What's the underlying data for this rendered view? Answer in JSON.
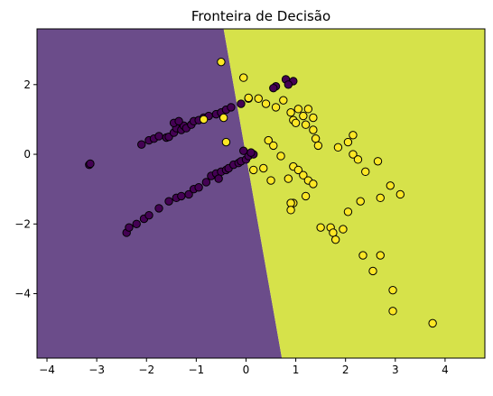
{
  "chart_data": {
    "type": "scatter",
    "title": "Fronteira de Decisão",
    "xlabel": "",
    "ylabel": "",
    "xlim": [
      -4.2,
      4.8
    ],
    "ylim": [
      -5.85,
      3.6
    ],
    "x_ticks": [
      -4,
      -3,
      -2,
      -1,
      0,
      1,
      2,
      3,
      4
    ],
    "y_ticks": [
      2,
      0,
      -2,
      -4
    ],
    "x_tick_labels": [
      "−4",
      "−3",
      "−2",
      "−1",
      "0",
      "1",
      "2",
      "3",
      "4"
    ],
    "y_tick_labels": [
      "2",
      "0",
      "−2",
      "−4"
    ],
    "grid": false,
    "colors": {
      "class0_region": "#6b4c8a",
      "class1_region": "#d6e24a",
      "class0_point": "#440154",
      "class1_point": "#fde725",
      "point_edge": "#000000"
    },
    "decision_boundary": [
      [
        -0.45,
        3.6
      ],
      [
        0.72,
        -5.85
      ]
    ],
    "series": [
      {
        "class": 0,
        "points": [
          [
            -3.15,
            -0.3
          ],
          [
            -3.13,
            -0.27
          ],
          [
            -2.1,
            0.28
          ],
          [
            -1.95,
            0.4
          ],
          [
            -1.85,
            0.45
          ],
          [
            -1.75,
            0.52
          ],
          [
            -1.6,
            0.48
          ],
          [
            -1.55,
            0.5
          ],
          [
            -1.45,
            0.62
          ],
          [
            -1.4,
            0.75
          ],
          [
            -1.3,
            0.7
          ],
          [
            -1.25,
            0.82
          ],
          [
            -1.2,
            0.75
          ],
          [
            -1.1,
            0.85
          ],
          [
            -1.05,
            0.95
          ],
          [
            -0.95,
            0.98
          ],
          [
            -0.85,
            1.05
          ],
          [
            -0.75,
            1.1
          ],
          [
            -0.6,
            1.15
          ],
          [
            -0.5,
            1.2
          ],
          [
            -0.4,
            1.28
          ],
          [
            -0.3,
            1.35
          ],
          [
            -0.1,
            1.45
          ],
          [
            0.05,
            1.6
          ],
          [
            -1.45,
            0.9
          ],
          [
            -1.35,
            0.95
          ],
          [
            -2.4,
            -2.25
          ],
          [
            -2.35,
            -2.1
          ],
          [
            -2.2,
            -2.0
          ],
          [
            -2.05,
            -1.85
          ],
          [
            -1.95,
            -1.75
          ],
          [
            -1.75,
            -1.55
          ],
          [
            -1.55,
            -1.35
          ],
          [
            -1.4,
            -1.25
          ],
          [
            -1.3,
            -1.2
          ],
          [
            -1.15,
            -1.15
          ],
          [
            -1.05,
            -1.0
          ],
          [
            -0.95,
            -0.95
          ],
          [
            -0.8,
            -0.8
          ],
          [
            -0.7,
            -0.62
          ],
          [
            -0.6,
            -0.55
          ],
          [
            -0.5,
            -0.5
          ],
          [
            -0.4,
            -0.45
          ],
          [
            -0.35,
            -0.4
          ],
          [
            -0.25,
            -0.3
          ],
          [
            -0.15,
            -0.25
          ],
          [
            -0.1,
            -0.2
          ],
          [
            0.0,
            -0.15
          ],
          [
            0.05,
            -0.05
          ],
          [
            0.15,
            0.0
          ],
          [
            -0.05,
            0.1
          ],
          [
            0.1,
            0.05
          ],
          [
            -0.55,
            -0.7
          ],
          [
            0.8,
            2.15
          ],
          [
            0.95,
            2.1
          ],
          [
            0.6,
            1.95
          ],
          [
            0.55,
            1.9
          ],
          [
            0.85,
            2.0
          ]
        ]
      },
      {
        "class": 1,
        "points": [
          [
            -0.5,
            2.65
          ],
          [
            -0.05,
            2.2
          ],
          [
            0.25,
            1.6
          ],
          [
            0.05,
            1.62
          ],
          [
            0.4,
            1.45
          ],
          [
            0.75,
            1.55
          ],
          [
            0.6,
            1.35
          ],
          [
            0.9,
            1.2
          ],
          [
            1.05,
            1.3
          ],
          [
            1.25,
            1.3
          ],
          [
            1.15,
            1.1
          ],
          [
            1.35,
            1.05
          ],
          [
            0.95,
            0.98
          ],
          [
            1.0,
            0.9
          ],
          [
            1.2,
            0.85
          ],
          [
            1.35,
            0.7
          ],
          [
            1.4,
            0.45
          ],
          [
            1.45,
            0.25
          ],
          [
            1.85,
            0.2
          ],
          [
            2.05,
            0.35
          ],
          [
            2.15,
            0.55
          ],
          [
            2.15,
            0.0
          ],
          [
            2.25,
            -0.15
          ],
          [
            2.4,
            -0.5
          ],
          [
            2.65,
            -0.2
          ],
          [
            2.9,
            -0.9
          ],
          [
            3.1,
            -1.15
          ],
          [
            2.7,
            -1.25
          ],
          [
            0.45,
            0.4
          ],
          [
            0.55,
            0.25
          ],
          [
            0.7,
            -0.05
          ],
          [
            0.95,
            -0.35
          ],
          [
            1.05,
            -0.45
          ],
          [
            1.15,
            -0.6
          ],
          [
            1.25,
            -0.75
          ],
          [
            1.35,
            -0.85
          ],
          [
            0.85,
            -0.7
          ],
          [
            0.5,
            -0.75
          ],
          [
            1.2,
            -1.2
          ],
          [
            0.95,
            -1.4
          ],
          [
            0.9,
            -1.4
          ],
          [
            0.9,
            -1.6
          ],
          [
            1.5,
            -2.1
          ],
          [
            1.7,
            -2.1
          ],
          [
            1.75,
            -2.25
          ],
          [
            1.8,
            -2.45
          ],
          [
            1.95,
            -2.15
          ],
          [
            2.3,
            -1.35
          ],
          [
            2.05,
            -1.65
          ],
          [
            2.35,
            -2.9
          ],
          [
            2.55,
            -3.35
          ],
          [
            2.7,
            -2.9
          ],
          [
            2.95,
            -3.9
          ],
          [
            2.95,
            -4.5
          ],
          [
            3.75,
            -4.85
          ],
          [
            -0.45,
            1.05
          ],
          [
            -0.4,
            0.35
          ],
          [
            -0.85,
            1.0
          ],
          [
            0.35,
            -0.4
          ],
          [
            0.15,
            -0.45
          ]
        ]
      }
    ]
  }
}
